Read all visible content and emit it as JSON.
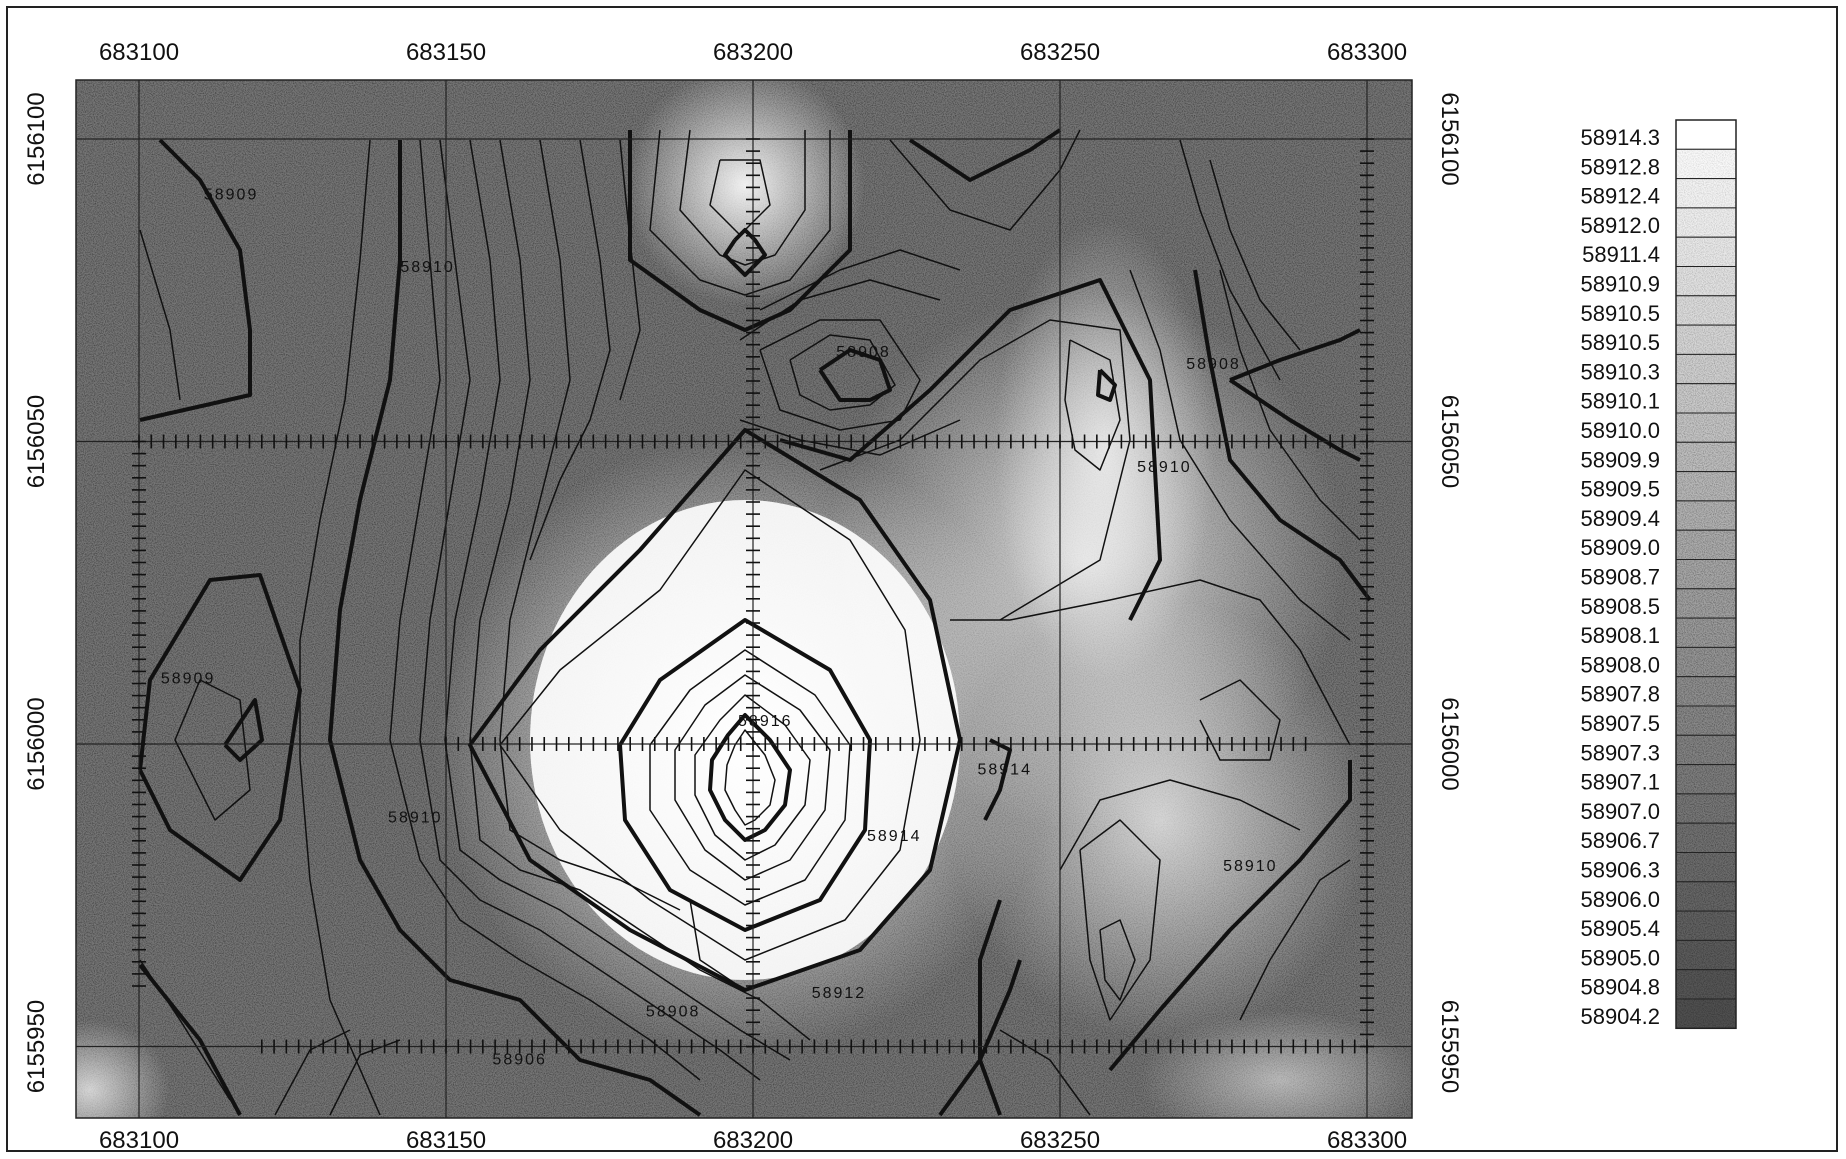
{
  "chart_data": {
    "type": "contour",
    "x_ticks": [
      "683100",
      "683150",
      "683200",
      "683250",
      "683300"
    ],
    "y_ticks": [
      "6156100",
      "6156050",
      "6156000",
      "6155950"
    ],
    "xlim": [
      683090,
      683310
    ],
    "ylim": [
      6155942,
      6156110
    ],
    "grid": true,
    "legend_position": "right",
    "legend": [
      "58914.3",
      "58912.8",
      "58912.4",
      "58912.0",
      "58911.4",
      "58910.9",
      "58910.5",
      "58910.5",
      "58910.3",
      "58910.1",
      "58910.0",
      "58909.9",
      "58909.5",
      "58909.4",
      "58909.0",
      "58908.7",
      "58908.5",
      "58908.1",
      "58908.0",
      "58907.8",
      "58907.5",
      "58907.3",
      "58907.1",
      "58907.0",
      "58906.7",
      "58906.3",
      "58906.0",
      "58905.4",
      "58905.0",
      "58904.8",
      "58904.2"
    ],
    "contour_labels": [
      {
        "text": "58909",
        "x": 683115,
        "y": 6156090
      },
      {
        "text": "58910",
        "x": 683147,
        "y": 6156078
      },
      {
        "text": "58908",
        "x": 683218,
        "y": 6156064
      },
      {
        "text": "58910",
        "x": 683267,
        "y": 6156045
      },
      {
        "text": "58908",
        "x": 683275,
        "y": 6156062
      },
      {
        "text": "58909",
        "x": 683108,
        "y": 6156010
      },
      {
        "text": "58910",
        "x": 683145,
        "y": 6155987
      },
      {
        "text": "58916",
        "x": 683202,
        "y": 6156003
      },
      {
        "text": "58914",
        "x": 683223,
        "y": 6155984
      },
      {
        "text": "58914",
        "x": 683241,
        "y": 6155995
      },
      {
        "text": "58910",
        "x": 683281,
        "y": 6155979
      },
      {
        "text": "58912",
        "x": 683214,
        "y": 6155958
      },
      {
        "text": "58908",
        "x": 683187,
        "y": 6155955
      },
      {
        "text": "58906",
        "x": 683162,
        "y": 6155947
      }
    ]
  }
}
